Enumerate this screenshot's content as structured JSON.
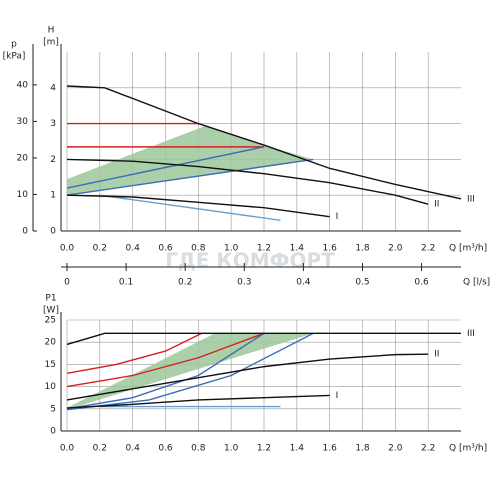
{
  "watermark": "ГДЕ КОМФОРТ",
  "chart_data": [
    {
      "type": "line",
      "ylabel": "H",
      "yunit": "[m]",
      "y2label": "p",
      "y2unit": "[kPa]",
      "xlabel": "Q [m³/h]",
      "x2label": "Q [l/s]",
      "xlim": [
        0,
        2.4
      ],
      "xticks": [
        {
          "value": 0,
          "label": "0.0"
        },
        0.2,
        0.4,
        0.6,
        0.8,
        {
          "value": 1,
          "label": "1.0"
        },
        1.2,
        1.4,
        1.6,
        1.8,
        {
          "value": 2,
          "label": "2.0"
        },
        2.2
      ],
      "ylim": [
        0,
        5
      ],
      "yticks": [
        0,
        1,
        2,
        3,
        4
      ],
      "y2lim": [
        0,
        49
      ],
      "y2ticks": [
        0,
        10,
        20,
        30,
        40
      ],
      "x2lim": [
        0,
        0.6667
      ],
      "x2ticks": [
        0,
        0.1,
        0.2,
        0.3,
        0.4,
        0.5,
        0.6
      ],
      "grid": true,
      "series": [
        {
          "color": "#9cc89a",
          "fill": true,
          "x": [
            0,
            0.85,
            1.2,
            1.5,
            0
          ],
          "values": [
            1.45,
            2.95,
            2.4,
            2.0,
            1.0
          ]
        },
        {
          "color": "#d42020",
          "x": [
            0,
            0.8
          ],
          "values": [
            3.0,
            3.0
          ]
        },
        {
          "color": "#d42020",
          "x": [
            0,
            1.2
          ],
          "values": [
            2.35,
            2.35
          ]
        },
        {
          "color": "#3a6db5",
          "x": [
            0,
            1.2
          ],
          "values": [
            1.2,
            2.35
          ]
        },
        {
          "color": "#3a6db5",
          "x": [
            0,
            1.5
          ],
          "values": [
            1.0,
            2.0
          ]
        },
        {
          "color": "#6aa0d0",
          "x": [
            0.2,
            1.3
          ],
          "values": [
            1.0,
            0.3
          ]
        },
        {
          "name": "III",
          "color": "#111111",
          "x": [
            0,
            0.23,
            0.8,
            1.2,
            1.6,
            2.0,
            2.4
          ],
          "values": [
            4.05,
            4.0,
            3.0,
            2.4,
            1.75,
            1.3,
            0.9
          ]
        },
        {
          "name": "II",
          "color": "#111111",
          "x": [
            0,
            0.4,
            0.8,
            1.2,
            1.6,
            2.0,
            2.2
          ],
          "values": [
            2.0,
            1.95,
            1.8,
            1.6,
            1.35,
            1.0,
            0.75
          ]
        },
        {
          "name": "I",
          "color": "#111111",
          "x": [
            0,
            0.4,
            0.8,
            1.2,
            1.6
          ],
          "values": [
            1.0,
            0.95,
            0.8,
            0.65,
            0.4
          ]
        }
      ]
    },
    {
      "type": "line",
      "ylabel": "P1",
      "yunit": "[W]",
      "xlabel": "Q [m³/h]",
      "xlim": [
        0,
        2.4
      ],
      "xticks": [
        {
          "value": 0,
          "label": "0.0"
        },
        0.2,
        0.4,
        0.6,
        0.8,
        {
          "value": 1,
          "label": "1.0"
        },
        1.2,
        1.4,
        1.6,
        1.8,
        {
          "value": 2,
          "label": "2.0"
        },
        2.2
      ],
      "ylim": [
        0,
        25
      ],
      "yticks": [
        0,
        5,
        10,
        15,
        20,
        25
      ],
      "grid": true,
      "series": [
        {
          "color": "#9cc89a",
          "fill": true,
          "x": [
            0,
            0.9,
            1.5,
            0
          ],
          "values": [
            5.2,
            22,
            22,
            4.8
          ]
        },
        {
          "color": "#d42020",
          "x": [
            0,
            0.3,
            0.6,
            0.82
          ],
          "values": [
            13,
            15,
            18,
            22
          ]
        },
        {
          "color": "#d42020",
          "x": [
            0,
            0.4,
            0.8,
            1.2
          ],
          "values": [
            10,
            12.5,
            16.5,
            22
          ]
        },
        {
          "color": "#3a6db5",
          "x": [
            0,
            0.4,
            0.8,
            1.2
          ],
          "values": [
            5,
            7.5,
            12.5,
            22
          ]
        },
        {
          "color": "#3a6db5",
          "x": [
            0,
            0.5,
            1.0,
            1.5
          ],
          "values": [
            4.8,
            7,
            12.5,
            22
          ]
        },
        {
          "color": "#6aa0d0",
          "x": [
            0.2,
            1.3
          ],
          "values": [
            5.5,
            5.5
          ]
        },
        {
          "name": "III",
          "color": "#111111",
          "x": [
            0,
            0.23,
            2.4
          ],
          "values": [
            19.5,
            22,
            22
          ]
        },
        {
          "name": "II",
          "color": "#111111",
          "x": [
            0,
            0.4,
            0.8,
            1.2,
            1.6,
            2.0,
            2.2
          ],
          "values": [
            7,
            9.5,
            12,
            14.5,
            16.2,
            17.2,
            17.3
          ]
        },
        {
          "name": "I",
          "color": "#111111",
          "x": [
            0,
            0.4,
            0.8,
            1.2,
            1.6
          ],
          "values": [
            5.2,
            6,
            7,
            7.5,
            8
          ]
        }
      ]
    }
  ]
}
